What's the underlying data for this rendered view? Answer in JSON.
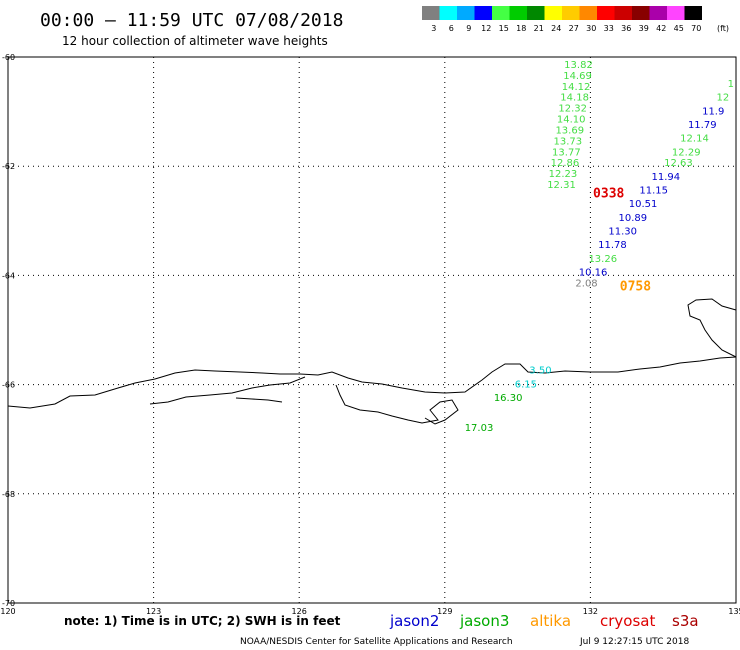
{
  "header": {
    "title": "00:00 – 11:59 UTC 07/08/2018",
    "subtitle": "12 hour collection of altimeter wave heights"
  },
  "legend": {
    "unit": "(ft)",
    "bins": [
      {
        "label": "3",
        "color": "#808080"
      },
      {
        "label": "6",
        "color": "#00ffff"
      },
      {
        "label": "9",
        "color": "#00aaff"
      },
      {
        "label": "12",
        "color": "#0000ff"
      },
      {
        "label": "15",
        "color": "#44ff44"
      },
      {
        "label": "18",
        "color": "#00cc00"
      },
      {
        "label": "21",
        "color": "#008800"
      },
      {
        "label": "24",
        "color": "#ffff00"
      },
      {
        "label": "27",
        "color": "#ffcc00"
      },
      {
        "label": "30",
        "color": "#ff8800"
      },
      {
        "label": "33",
        "color": "#ff0000"
      },
      {
        "label": "36",
        "color": "#cc0000"
      },
      {
        "label": "39",
        "color": "#880000"
      },
      {
        "label": "42",
        "color": "#aa00aa"
      },
      {
        "label": "45",
        "color": "#ff44ff"
      },
      {
        "label": "70",
        "color": "#000000"
      }
    ]
  },
  "axes": {
    "lon_labels": [
      "120",
      "123",
      "126",
      "129",
      "132",
      "135"
    ],
    "lat_labels": [
      "-60",
      "-62",
      "-64",
      "-66",
      "-68",
      "-70"
    ]
  },
  "colors": {
    "jason2": "#0000cc",
    "jason3": "#00aa00",
    "jason3_light": "#44dd44",
    "cyan": "#00cccc",
    "altika": "#ff9900",
    "cryosat": "#dd0000",
    "gray": "#808080"
  },
  "track_a": [
    {
      "v": "13.82",
      "lon": 132.05,
      "lat": -60.2
    },
    {
      "v": "14.69",
      "lon": 132.03,
      "lat": -60.4
    },
    {
      "v": "14.12",
      "lon": 132.0,
      "lat": -60.6
    },
    {
      "v": "14.18",
      "lon": 131.97,
      "lat": -60.8
    },
    {
      "v": "12.32",
      "lon": 131.93,
      "lat": -61.0
    },
    {
      "v": "14.10",
      "lon": 131.9,
      "lat": -61.2
    },
    {
      "v": "13.69",
      "lon": 131.87,
      "lat": -61.4
    },
    {
      "v": "13.73",
      "lon": 131.83,
      "lat": -61.6
    },
    {
      "v": "13.77",
      "lon": 131.8,
      "lat": -61.8
    },
    {
      "v": "12.86",
      "lon": 131.77,
      "lat": -62.0
    },
    {
      "v": "12.23",
      "lon": 131.73,
      "lat": -62.2
    },
    {
      "v": "12.31",
      "lon": 131.7,
      "lat": -62.4
    }
  ],
  "track_b_top": [
    {
      "v": "1",
      "lon": 134.96,
      "lat": -60.55,
      "c": "jason3_light"
    },
    {
      "v": "12",
      "lon": 134.86,
      "lat": -60.8,
      "c": "jason3_light"
    },
    {
      "v": "11.9",
      "lon": 134.76,
      "lat": -61.05,
      "c": "jason2"
    },
    {
      "v": "11.79",
      "lon": 134.6,
      "lat": -61.3,
      "c": "jason2"
    },
    {
      "v": "12.14",
      "lon": 134.44,
      "lat": -61.55,
      "c": "jason3_light"
    },
    {
      "v": "12.29",
      "lon": 134.27,
      "lat": -61.8,
      "c": "jason3_light"
    },
    {
      "v": "12.63",
      "lon": 134.11,
      "lat": -62.0,
      "c": "jason3_light"
    },
    {
      "v": "11.94",
      "lon": 133.85,
      "lat": -62.25,
      "c": "jason2"
    },
    {
      "v": "11.15",
      "lon": 133.6,
      "lat": -62.5,
      "c": "jason2"
    },
    {
      "v": "10.51",
      "lon": 133.38,
      "lat": -62.75,
      "c": "jason2"
    },
    {
      "v": "10.89",
      "lon": 133.17,
      "lat": -63.0,
      "c": "jason2"
    },
    {
      "v": "11.30",
      "lon": 132.96,
      "lat": -63.25,
      "c": "jason2"
    },
    {
      "v": "11.78",
      "lon": 132.75,
      "lat": -63.5,
      "c": "jason2"
    },
    {
      "v": "13.26",
      "lon": 132.55,
      "lat": -63.75,
      "c": "jason3_light"
    },
    {
      "v": "10.16",
      "lon": 132.35,
      "lat": -64.0,
      "c": "jason2"
    },
    {
      "v": "2.08",
      "lon": 132.15,
      "lat": -64.2,
      "c": "gray"
    }
  ],
  "track_c": [
    {
      "v": "3.50",
      "lon": 131.2,
      "lat": -65.8,
      "c": "cyan"
    },
    {
      "v": "6.15",
      "lon": 130.9,
      "lat": -66.05,
      "c": "cyan"
    },
    {
      "v": "16.30",
      "lon": 130.6,
      "lat": -66.3,
      "c": "jason3"
    },
    {
      "v": "17.03",
      "lon": 130.0,
      "lat": -66.85,
      "c": "jason3"
    }
  ],
  "time_labels": [
    {
      "v": "0338",
      "lon": 132.7,
      "lat": -62.5,
      "c": "cryosat"
    },
    {
      "v": "0758",
      "lon": 133.25,
      "lat": -64.2,
      "c": "altika"
    }
  ],
  "footer": {
    "note": "note:  1) Time is in UTC;  2) SWH is in feet",
    "satellites": [
      {
        "name": "jason2",
        "color": "#0000cc"
      },
      {
        "name": "jason3",
        "color": "#00aa00"
      },
      {
        "name": "altika",
        "color": "#ff9900"
      },
      {
        "name": "cryosat",
        "color": "#dd0000"
      },
      {
        "name": "s3a",
        "color": "#aa0000"
      }
    ],
    "credit": "NOAA/NESDIS Center for Satellite Applications and Research",
    "timestamp": "Jul  9  12:27:15 UTC 2018"
  }
}
